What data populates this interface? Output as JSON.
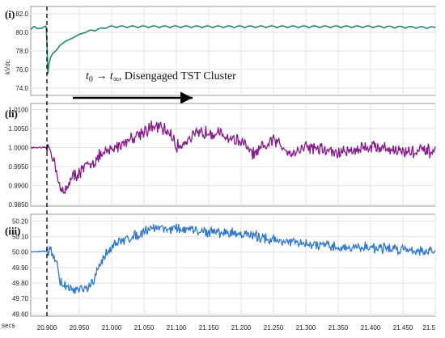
{
  "chart_data": [
    {
      "type": "line",
      "panel_label": "(i)",
      "ylabel": "kVdc",
      "yticks": [
        "82.0",
        "80.0",
        "78.0",
        "76.0",
        "74.0"
      ],
      "ylim": [
        73.2,
        82.8
      ],
      "color": "#1f8a6a",
      "series": [
        {
          "points": [
            [
              20.875,
              80.4
            ],
            [
              20.88,
              80.6
            ],
            [
              20.885,
              80.3
            ],
            [
              20.89,
              80.5
            ],
            [
              20.898,
              80.6
            ],
            [
              20.9,
              80.2
            ],
            [
              20.9005,
              76.5
            ],
            [
              20.901,
              75.2
            ],
            [
              20.903,
              76.6
            ],
            [
              20.906,
              77.4
            ],
            [
              20.91,
              77.8
            ],
            [
              20.915,
              78.1
            ],
            [
              20.92,
              78.6
            ],
            [
              20.93,
              79.1
            ],
            [
              20.94,
              79.4
            ],
            [
              20.95,
              79.8
            ],
            [
              20.96,
              80.0
            ],
            [
              20.97,
              80.2
            ],
            [
              20.98,
              80.3
            ],
            [
              20.99,
              80.5
            ],
            [
              21.0,
              80.6
            ],
            [
              21.02,
              80.6
            ],
            [
              21.05,
              80.6
            ],
            [
              21.1,
              80.6
            ],
            [
              21.2,
              80.6
            ],
            [
              21.3,
              80.6
            ],
            [
              21.4,
              80.6
            ],
            [
              21.5,
              80.5
            ]
          ],
          "ripple": 0.2
        }
      ]
    },
    {
      "type": "line",
      "panel_label": "(ii)",
      "ylabel": "",
      "yticks": [
        "1.0100",
        "1.0050",
        "1.0000",
        "0.9950",
        "0.9900",
        "0.9850"
      ],
      "ylim": [
        0.9846,
        1.0116
      ],
      "color": "#861b8c",
      "series": [
        {
          "points": [
            [
              20.875,
              1.0
            ],
            [
              20.9,
              1.0
            ],
            [
              20.905,
              0.9995
            ],
            [
              20.915,
              0.9945
            ],
            [
              20.92,
              0.9895
            ],
            [
              20.925,
              0.9875
            ],
            [
              20.935,
              0.9915
            ],
            [
              20.95,
              0.9935
            ],
            [
              20.965,
              0.9955
            ],
            [
              20.98,
              0.9975
            ],
            [
              21.0,
              0.9995
            ],
            [
              21.03,
              1.0025
            ],
            [
              21.05,
              1.0045
            ],
            [
              21.07,
              1.0055
            ],
            [
              21.09,
              1.004
            ],
            [
              21.1,
              1.0
            ],
            [
              21.12,
              1.0025
            ],
            [
              21.15,
              1.0045
            ],
            [
              21.2,
              1.0015
            ],
            [
              21.22,
              0.998
            ],
            [
              21.25,
              1.002
            ],
            [
              21.28,
              0.9985
            ],
            [
              21.3,
              1.0005
            ],
            [
              21.35,
              0.9985
            ],
            [
              21.4,
              1.0005
            ],
            [
              21.45,
              0.999
            ],
            [
              21.5,
              0.999
            ]
          ],
          "noise": 0.0028
        }
      ]
    },
    {
      "type": "line",
      "panel_label": "(iii)",
      "ylabel": "",
      "yticks": [
        "50.20",
        "50.10",
        "50.00",
        "49.90",
        "49.80",
        "49.70",
        "49.60"
      ],
      "ylim": [
        49.586,
        50.244
      ],
      "color": "#2e77d0",
      "series": [
        {
          "points": [
            [
              20.875,
              50.0
            ],
            [
              20.9,
              50.005
            ],
            [
              20.905,
              50.01
            ],
            [
              20.91,
              49.99
            ],
            [
              20.915,
              49.93
            ],
            [
              20.92,
              49.81
            ],
            [
              20.93,
              49.77
            ],
            [
              20.945,
              49.75
            ],
            [
              20.96,
              49.76
            ],
            [
              20.97,
              49.79
            ],
            [
              20.98,
              49.9
            ],
            [
              20.99,
              49.98
            ],
            [
              21.0,
              50.04
            ],
            [
              21.02,
              50.08
            ],
            [
              21.04,
              50.11
            ],
            [
              21.06,
              50.16
            ],
            [
              21.1,
              50.15
            ],
            [
              21.15,
              50.13
            ],
            [
              21.2,
              50.12
            ],
            [
              21.25,
              50.08
            ],
            [
              21.3,
              50.05
            ],
            [
              21.35,
              50.03
            ],
            [
              21.4,
              50.03
            ],
            [
              21.45,
              50.02
            ],
            [
              21.5,
              50.0
            ]
          ],
          "noise": 0.05
        }
      ]
    }
  ],
  "x_axis": {
    "unit_label": "secs",
    "range": [
      20.875,
      21.5
    ],
    "tick_labels": [
      "20.900",
      "20.950",
      "21.000",
      "21.050",
      "21.100",
      "21.150",
      "21.200",
      "21.250",
      "21.300",
      "21.350",
      "21.400",
      "21.450",
      "21.5"
    ],
    "tick_values": [
      20.9,
      20.95,
      21.0,
      21.05,
      21.1,
      21.15,
      21.2,
      21.25,
      21.3,
      21.35,
      21.4,
      21.45,
      21.5
    ]
  },
  "annotation": {
    "t0": "t",
    "t0_sub": "0",
    "arrow": " → ",
    "tinf": "t",
    "tinf_sub": "∞",
    "rest": ", Disengaged TST Cluster"
  },
  "event_line_x": 20.9,
  "grid": true
}
